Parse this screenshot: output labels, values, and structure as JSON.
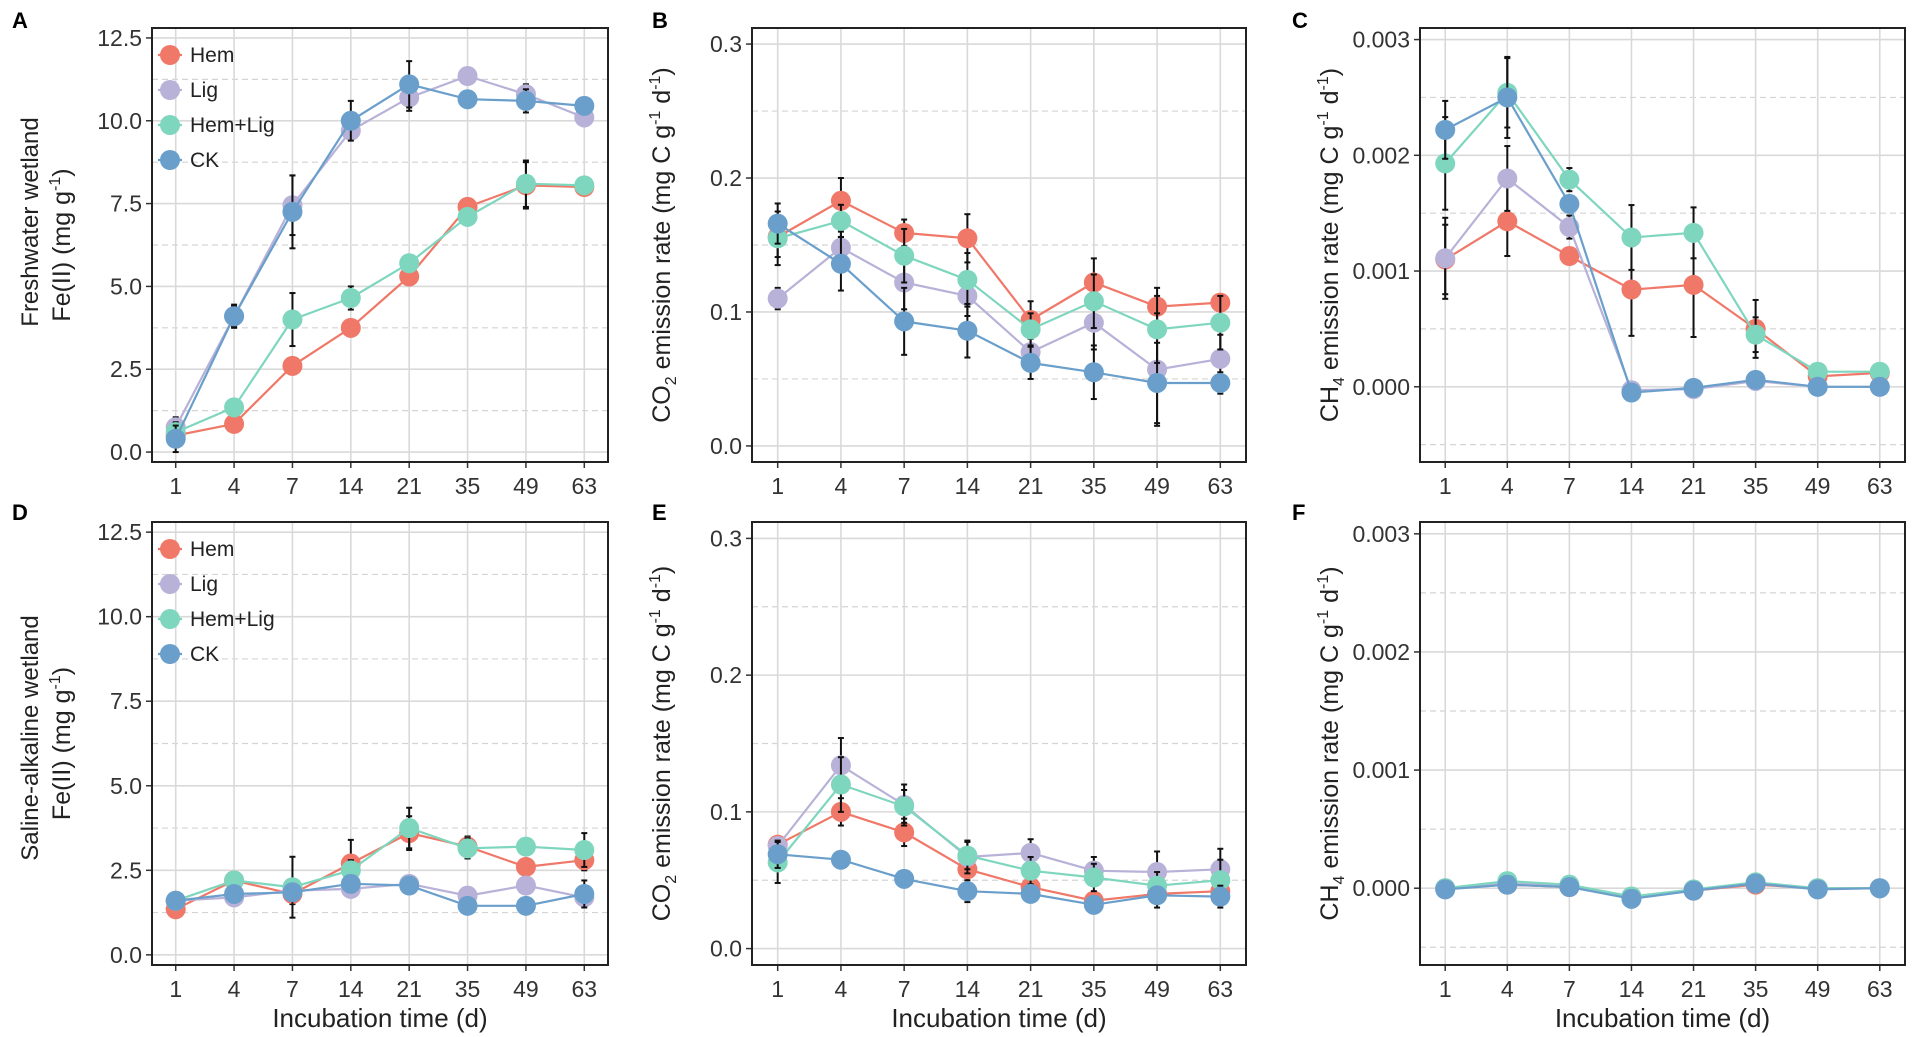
{
  "colors": {
    "Hem": "#F07868",
    "Lig": "#B8B1D8",
    "Hem+Lig": "#7FD6BE",
    "CK": "#6A9FCB"
  },
  "row_labels": [
    "Freshwater wetland",
    "Saline-alkaline wetland"
  ],
  "chart_data": [
    {
      "panel": "A",
      "type": "line",
      "title": "",
      "xlabel": "",
      "ylabel": "Fe(II) (mg g-1)",
      "ylabel_parts": {
        "pre": "Fe(II) (mg g",
        "sup": "-1",
        "post": ")"
      },
      "categories": [
        "1",
        "4",
        "7",
        "14",
        "21",
        "35",
        "49",
        "63"
      ],
      "ylim": [
        -0.3,
        12.8
      ],
      "yticks": [
        0,
        2.5,
        5,
        7.5,
        10,
        12.5
      ],
      "ytick_labels": [
        "0.0",
        "2.5",
        "5.0",
        "7.5",
        "10.0",
        "12.5"
      ],
      "legend": "top-left",
      "series": [
        {
          "name": "Hem",
          "values": [
            0.5,
            0.85,
            2.6,
            3.75,
            5.3,
            7.4,
            8.05,
            8.0
          ],
          "errors": [
            0.3,
            0.1,
            0.2,
            0.15,
            0.15,
            0.2,
            0.7,
            0.15
          ]
        },
        {
          "name": "Lig",
          "values": [
            0.75,
            4.1,
            7.45,
            9.7,
            10.7,
            11.35,
            10.8,
            10.1
          ],
          "errors": [
            0.3,
            0.3,
            0.9,
            0.2,
            0.4,
            0.1,
            0.3,
            0.2
          ]
        },
        {
          "name": "Hem+Lig",
          "values": [
            0.6,
            1.35,
            4.0,
            4.65,
            5.7,
            7.1,
            8.1,
            8.05
          ],
          "errors": [
            0.3,
            0.1,
            0.8,
            0.35,
            0.15,
            0.15,
            0.7,
            0.15
          ]
        },
        {
          "name": "CK",
          "values": [
            0.4,
            4.1,
            7.25,
            10.0,
            11.1,
            10.65,
            10.6,
            10.45
          ],
          "errors": [
            0.4,
            0.35,
            1.1,
            0.6,
            0.7,
            0.15,
            0.35,
            0.2
          ]
        }
      ]
    },
    {
      "panel": "B",
      "type": "line",
      "title": "",
      "xlabel": "",
      "ylabel": "CO2 emission rate (mg C g-1 d-1)",
      "ylabel_parts": {
        "pre": "CO",
        "sub": "2",
        "mid": " emission rate (mg C g",
        "sup1": "-1",
        "mid2": " d",
        "sup2": "-1",
        "post": ")"
      },
      "categories": [
        "1",
        "4",
        "7",
        "14",
        "21",
        "35",
        "49",
        "63"
      ],
      "ylim": [
        -0.012,
        0.312
      ],
      "yticks": [
        0,
        0.1,
        0.2,
        0.3
      ],
      "ytick_labels": [
        "0.0",
        "0.1",
        "0.2",
        "0.3"
      ],
      "legend": "none",
      "series": [
        {
          "name": "Hem",
          "values": [
            0.156,
            0.183,
            0.159,
            0.155,
            0.094,
            0.122,
            0.104,
            0.107
          ],
          "errors": [
            0.015,
            0.017,
            0.01,
            0.018,
            0.014,
            0.018,
            0.014,
            0.006
          ]
        },
        {
          "name": "Lig",
          "values": [
            0.11,
            0.148,
            0.122,
            0.112,
            0.07,
            0.092,
            0.057,
            0.065
          ],
          "errors": [
            0.008,
            0.012,
            0.02,
            0.015,
            0.012,
            0.02,
            0.042,
            0.018
          ]
        },
        {
          "name": "Hem+Lig",
          "values": [
            0.155,
            0.168,
            0.142,
            0.124,
            0.087,
            0.108,
            0.087,
            0.092
          ],
          "errors": [
            0.02,
            0.012,
            0.02,
            0.02,
            0.012,
            0.02,
            0.025,
            0.02
          ]
        },
        {
          "name": "CK",
          "values": [
            0.166,
            0.136,
            0.093,
            0.086,
            0.062,
            0.055,
            0.047,
            0.047
          ],
          "errors": [
            0.015,
            0.02,
            0.025,
            0.02,
            0.012,
            0.02,
            0.03,
            0.008
          ]
        }
      ]
    },
    {
      "panel": "C",
      "type": "line",
      "title": "",
      "xlabel": "",
      "ylabel": "CH4 emission rate (mg C g-1 d-1)",
      "ylabel_parts": {
        "pre": "CH",
        "sub": "4",
        "mid": " emission rate (mg C g",
        "sup1": "-1",
        "mid2": " d",
        "sup2": "-1",
        "post": ")"
      },
      "categories": [
        "1",
        "4",
        "7",
        "14",
        "21",
        "35",
        "49",
        "63"
      ],
      "ylim": [
        -0.00065,
        0.0031
      ],
      "yticks": [
        0,
        0.001,
        0.002,
        0.003
      ],
      "ytick_labels": [
        "0.000",
        "0.001",
        "0.002",
        "0.003"
      ],
      "legend": "none",
      "series": [
        {
          "name": "Hem",
          "values": [
            0.0011,
            0.00143,
            0.00113,
            0.00084,
            0.00088,
            0.0005,
            9e-05,
            0.00012
          ],
          "errors": [
            0.0003,
            0.0003,
            5e-05,
            0.0004,
            0.00045,
            0.00025,
            4e-05,
            2e-05
          ]
        },
        {
          "name": "Lig",
          "values": [
            0.00111,
            0.0018,
            0.00138,
            -3e-05,
            -2e-05,
            5e-05,
            0.0,
            0.0
          ],
          "errors": [
            0.00035,
            0.00028,
            0.0001,
            4e-05,
            2e-05,
            2e-05,
            2e-05,
            1e-05
          ]
        },
        {
          "name": "Hem+Lig",
          "values": [
            0.00193,
            0.00254,
            0.00179,
            0.00129,
            0.00133,
            0.00045,
            0.00013,
            0.00013
          ],
          "errors": [
            0.0004,
            0.0003,
            0.0001,
            0.00028,
            0.00022,
            0.00015,
            2e-05,
            2e-05
          ]
        },
        {
          "name": "CK",
          "values": [
            0.00222,
            0.0025,
            0.00158,
            -5e-05,
            -1e-05,
            6e-05,
            0.0,
            0.0
          ],
          "errors": [
            0.00025,
            0.00035,
            5e-05,
            3e-05,
            2e-05,
            2e-05,
            1e-05,
            1e-05
          ]
        }
      ]
    },
    {
      "panel": "D",
      "type": "line",
      "title": "",
      "xlabel": "Incubation time (d)",
      "ylabel": "Fe(II) (mg g-1)",
      "ylabel_parts": {
        "pre": "Fe(II) (mg g",
        "sup": "-1",
        "post": ")"
      },
      "categories": [
        "1",
        "4",
        "7",
        "14",
        "21",
        "35",
        "49",
        "63"
      ],
      "ylim": [
        -0.3,
        12.8
      ],
      "yticks": [
        0,
        2.5,
        5,
        7.5,
        10,
        12.5
      ],
      "ytick_labels": [
        "0.0",
        "2.5",
        "5.0",
        "7.5",
        "10.0",
        "12.5"
      ],
      "legend": "top-left",
      "series": [
        {
          "name": "Hem",
          "values": [
            1.35,
            2.2,
            1.8,
            2.7,
            3.6,
            3.2,
            2.6,
            2.8
          ],
          "errors": [
            0.1,
            0.1,
            0.3,
            0.7,
            0.5,
            0.3,
            0.1,
            0.3
          ]
        },
        {
          "name": "Lig",
          "values": [
            1.6,
            1.7,
            1.9,
            1.95,
            2.1,
            1.75,
            2.05,
            1.7
          ],
          "errors": [
            0.1,
            0.1,
            0.2,
            0.1,
            0.1,
            0.1,
            0.1,
            0.2
          ]
        },
        {
          "name": "Hem+Lig",
          "values": [
            1.6,
            2.2,
            2.0,
            2.5,
            3.75,
            3.15,
            3.2,
            3.1
          ],
          "errors": [
            0.1,
            0.1,
            0.9,
            0.3,
            0.6,
            0.3,
            0.2,
            0.5
          ]
        },
        {
          "name": "CK",
          "values": [
            1.6,
            1.8,
            1.85,
            2.1,
            2.05,
            1.45,
            1.45,
            1.8
          ],
          "errors": [
            0.1,
            0.1,
            0.2,
            0.2,
            0.2,
            0.1,
            0.1,
            0.4
          ]
        }
      ]
    },
    {
      "panel": "E",
      "type": "line",
      "title": "",
      "xlabel": "Incubation time (d)",
      "ylabel": "CO2 emission rate (mg C g-1 d-1)",
      "ylabel_parts": {
        "pre": "CO",
        "sub": "2",
        "mid": " emission rate (mg C g",
        "sup1": "-1",
        "mid2": " d",
        "sup2": "-1",
        "post": ")"
      },
      "categories": [
        "1",
        "4",
        "7",
        "14",
        "21",
        "35",
        "49",
        "63"
      ],
      "ylim": [
        -0.012,
        0.312
      ],
      "yticks": [
        0,
        0.1,
        0.2,
        0.3
      ],
      "ytick_labels": [
        "0.0",
        "0.1",
        "0.2",
        "0.3"
      ],
      "legend": "none",
      "series": [
        {
          "name": "Hem",
          "values": [
            0.076,
            0.1,
            0.085,
            0.058,
            0.045,
            0.035,
            0.04,
            0.042
          ],
          "errors": [
            0.005,
            0.01,
            0.01,
            0.01,
            0.01,
            0.005,
            0.01,
            0.01
          ]
        },
        {
          "name": "Lig",
          "values": [
            0.075,
            0.134,
            0.105,
            0.067,
            0.07,
            0.057,
            0.056,
            0.058
          ],
          "errors": [
            0.005,
            0.02,
            0.015,
            0.012,
            0.01,
            0.01,
            0.015,
            0.015
          ]
        },
        {
          "name": "Hem+Lig",
          "values": [
            0.063,
            0.12,
            0.104,
            0.068,
            0.057,
            0.052,
            0.046,
            0.05
          ],
          "errors": [
            0.015,
            0.02,
            0.012,
            0.01,
            0.01,
            0.01,
            0.01,
            0.015
          ]
        },
        {
          "name": "CK",
          "values": [
            0.069,
            0.065,
            0.051,
            0.042,
            0.04,
            0.032,
            0.039,
            0.038
          ],
          "errors": [
            0.01,
            0.005,
            0.005,
            0.008,
            0.005,
            0.005,
            0.005,
            0.008
          ]
        }
      ]
    },
    {
      "panel": "F",
      "type": "line",
      "title": "",
      "xlabel": "Incubation time (d)",
      "ylabel": "CH4 emission rate (mg C g-1 d-1)",
      "ylabel_parts": {
        "pre": "CH",
        "sub": "4",
        "mid": " emission rate (mg C g",
        "sup1": "-1",
        "mid2": " d",
        "sup2": "-1",
        "post": ")"
      },
      "categories": [
        "1",
        "4",
        "7",
        "14",
        "21",
        "35",
        "49",
        "63"
      ],
      "ylim": [
        -0.00065,
        0.0031
      ],
      "yticks": [
        0,
        0.001,
        0.002,
        0.003
      ],
      "ytick_labels": [
        "0.000",
        "0.001",
        "0.002",
        "0.003"
      ],
      "legend": "none",
      "series": [
        {
          "name": "Hem",
          "values": [
            0.0,
            3e-05,
            1e-05,
            -8e-05,
            -2e-05,
            3e-05,
            0.0,
            0.0
          ],
          "errors": [
            1e-05,
            1e-05,
            1e-05,
            1e-05,
            1e-05,
            1e-05,
            1e-05,
            1e-05
          ]
        },
        {
          "name": "Lig",
          "values": [
            0.0,
            4e-05,
            2e-05,
            -7e-05,
            -2e-05,
            4e-05,
            0.0,
            0.0
          ],
          "errors": [
            1e-05,
            1e-05,
            1e-05,
            1e-05,
            1e-05,
            1e-05,
            1e-05,
            1e-05
          ]
        },
        {
          "name": "Hem+Lig",
          "values": [
            0.0,
            6e-05,
            3e-05,
            -7e-05,
            -1e-05,
            5e-05,
            0.0,
            0.0
          ],
          "errors": [
            1e-05,
            1e-05,
            1e-05,
            1e-05,
            1e-05,
            1e-05,
            1e-05,
            1e-05
          ]
        },
        {
          "name": "CK",
          "values": [
            -1e-05,
            3e-05,
            1e-05,
            -9e-05,
            -2e-05,
            4e-05,
            -1e-05,
            0.0
          ],
          "errors": [
            1e-05,
            1e-05,
            1e-05,
            1e-05,
            1e-05,
            1e-05,
            1e-05,
            1e-05
          ]
        }
      ]
    }
  ]
}
